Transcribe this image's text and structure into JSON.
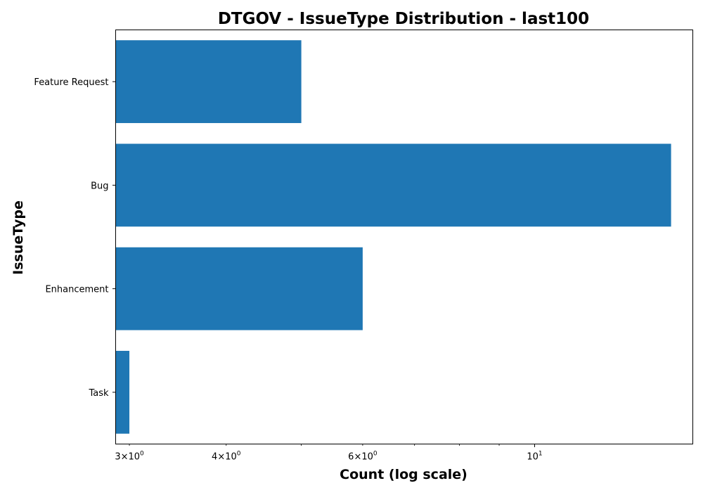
{
  "chart_data": {
    "type": "bar",
    "orientation": "horizontal",
    "title": "DTGOV - IssueType Distribution - last100",
    "xlabel": "Count (log scale)",
    "ylabel": "IssueType",
    "x_scale": "log",
    "xlim": [
      2.88,
      16.0
    ],
    "categories": [
      "Task",
      "Enhancement",
      "Bug",
      "Feature Request"
    ],
    "values": [
      3,
      6,
      15,
      5
    ],
    "bar_color": "#1f77b4",
    "x_major_ticks": [
      {
        "value": 10,
        "base": "10",
        "exp": "1"
      }
    ],
    "x_minor_ticks": [
      {
        "value": 3,
        "base": "3×10",
        "exp": "0"
      },
      {
        "value": 4,
        "base": "4×10",
        "exp": "0"
      },
      {
        "value": 5,
        "base": "",
        "exp": ""
      },
      {
        "value": 6,
        "base": "6×10",
        "exp": "0"
      },
      {
        "value": 7,
        "base": "",
        "exp": ""
      },
      {
        "value": 8,
        "base": "",
        "exp": ""
      },
      {
        "value": 9,
        "base": "",
        "exp": ""
      }
    ],
    "grid": false,
    "legend": "none"
  }
}
